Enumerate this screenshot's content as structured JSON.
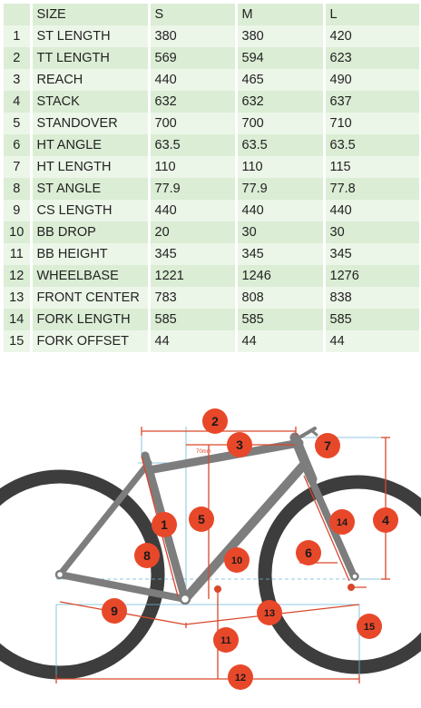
{
  "table": {
    "columns": [
      "",
      "SIZE",
      "S",
      "M",
      "L"
    ],
    "rows": [
      {
        "n": "1",
        "label": "ST LENGTH",
        "s": "380",
        "m": "380",
        "l": "420"
      },
      {
        "n": "2",
        "label": "TT LENGTH",
        "s": "569",
        "m": "594",
        "l": "623"
      },
      {
        "n": "3",
        "label": "REACH",
        "s": "440",
        "m": "465",
        "l": "490"
      },
      {
        "n": "4",
        "label": "STACK",
        "s": "632",
        "m": "632",
        "l": "637"
      },
      {
        "n": "5",
        "label": "STANDOVER",
        "s": "700",
        "m": "700",
        "l": "710"
      },
      {
        "n": "6",
        "label": "HT ANGLE",
        "s": "63.5",
        "m": "63.5",
        "l": "63.5"
      },
      {
        "n": "7",
        "label": "HT LENGTH",
        "s": "110",
        "m": "110",
        "l": "115"
      },
      {
        "n": "8",
        "label": "ST ANGLE",
        "s": "77.9",
        "m": "77.9",
        "l": "77.8"
      },
      {
        "n": "9",
        "label": "CS LENGTH",
        "s": "440",
        "m": "440",
        "l": "440"
      },
      {
        "n": "10",
        "label": "BB DROP",
        "s": "20",
        "m": "30",
        "l": "30"
      },
      {
        "n": "11",
        "label": "BB HEIGHT",
        "s": "345",
        "m": "345",
        "l": "345"
      },
      {
        "n": "12",
        "label": "WHEELBASE",
        "s": "1221",
        "m": "1246",
        "l": "1276"
      },
      {
        "n": "13",
        "label": "FRONT CENTER",
        "s": "783",
        "m": "808",
        "l": "838"
      },
      {
        "n": "14",
        "label": "FORK LENGTH",
        "s": "585",
        "m": "585",
        "l": "585"
      },
      {
        "n": "15",
        "label": "FORK OFFSET",
        "s": "44",
        "m": "44",
        "l": "44"
      }
    ]
  },
  "diagram": {
    "marker_note": "70mm",
    "markers": [
      "1",
      "2",
      "3",
      "4",
      "5",
      "6",
      "7",
      "8",
      "9",
      "10",
      "11",
      "12",
      "13",
      "14",
      "15"
    ]
  },
  "colors": {
    "row_even": "#dbedd5",
    "row_odd": "#ecf6e8",
    "frame": "#7d7d7d",
    "tire": "#3d3d3d",
    "dimension": "#d9472b",
    "guide": "#6ab7d6",
    "marker": "#e8482a"
  }
}
